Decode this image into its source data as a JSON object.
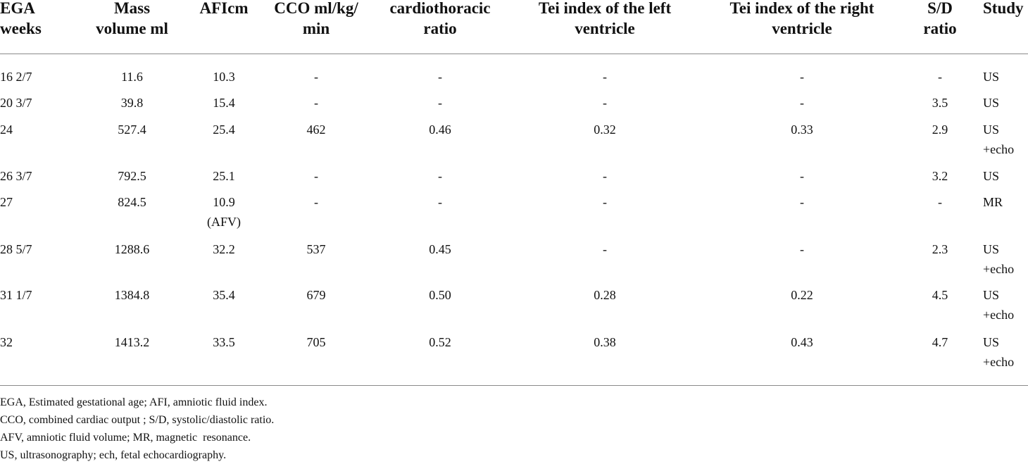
{
  "table": {
    "headers": [
      [
        "EGA",
        "weeks"
      ],
      [
        "Mass",
        "volume ml"
      ],
      [
        "AFIcm"
      ],
      [
        "CCO ml/kg/",
        "min"
      ],
      [
        "cardiothoracic",
        "ratio"
      ],
      [
        "Tei index of the left",
        "ventricle"
      ],
      [
        "Tei index of the right",
        "ventricle"
      ],
      [
        "S/D",
        "ratio"
      ],
      [
        "Study"
      ]
    ],
    "rows": [
      {
        "ega": "16 2/7",
        "mass": "11.6",
        "afi": [
          "10.3"
        ],
        "cco": "-",
        "ctr": "-",
        "tei_left": "-",
        "tei_right": "-",
        "sd": "-",
        "study": [
          "US"
        ]
      },
      {
        "ega": "20 3/7",
        "mass": "39.8",
        "afi": [
          "15.4"
        ],
        "cco": "-",
        "ctr": "-",
        "tei_left": "-",
        "tei_right": "-",
        "sd": "3.5",
        "study": [
          "US"
        ]
      },
      {
        "ega": "24",
        "mass": "527.4",
        "afi": [
          "25.4"
        ],
        "cco": "462",
        "ctr": "0.46",
        "tei_left": "0.32",
        "tei_right": "0.33",
        "sd": "2.9",
        "study": [
          "US",
          "+echo"
        ]
      },
      {
        "ega": "26 3/7",
        "mass": "792.5",
        "afi": [
          "25.1"
        ],
        "cco": "-",
        "ctr": "-",
        "tei_left": "-",
        "tei_right": "-",
        "sd": "3.2",
        "study": [
          "US"
        ]
      },
      {
        "ega": "27",
        "mass": "824.5",
        "afi": [
          "10.9",
          "(AFV)"
        ],
        "cco": "-",
        "ctr": "-",
        "tei_left": "-",
        "tei_right": "-",
        "sd": "-",
        "study": [
          "MR"
        ]
      },
      {
        "ega": "28 5/7",
        "mass": "1288.6",
        "afi": [
          "32.2"
        ],
        "cco": "537",
        "ctr": "0.45",
        "tei_left": "-",
        "tei_right": "-",
        "sd": "2.3",
        "study": [
          "US",
          "+echo"
        ]
      },
      {
        "ega": "31 1/7",
        "mass": "1384.8",
        "afi": [
          "35.4"
        ],
        "cco": "679",
        "ctr": "0.50",
        "tei_left": "0.28",
        "tei_right": "0.22",
        "sd": "4.5",
        "study": [
          "US",
          "+echo"
        ]
      },
      {
        "ega": "32",
        "mass": "1413.2",
        "afi": [
          "33.5"
        ],
        "cco": "705",
        "ctr": "0.52",
        "tei_left": "0.38",
        "tei_right": "0.43",
        "sd": "4.7",
        "study": [
          "US",
          "+echo"
        ]
      }
    ]
  },
  "footnotes": [
    "EGA, Estimated gestational age; AFI, amniotic fluid index.",
    "CCO, combined cardiac output ; S/D, systolic/diastolic ratio.",
    "AFV, amniotic fluid volume; MR, magnetic  resonance.",
    "US, ultrasonography; ech, fetal echocardiography."
  ]
}
